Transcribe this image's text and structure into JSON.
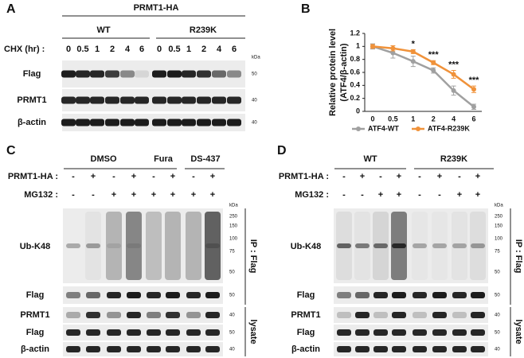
{
  "panel_a": {
    "label": "A",
    "construct": "PRMT1-HA",
    "groups": [
      "WT",
      "R239K"
    ],
    "row_label": "CHX (hr) :",
    "times": [
      "0",
      "0.5",
      "1",
      "2",
      "4",
      "6",
      "0",
      "0.5",
      "1",
      "2",
      "4",
      "6"
    ],
    "kda": "kDa",
    "blots": [
      {
        "name": "Flag",
        "marker": "50"
      },
      {
        "name": "PRMT1",
        "marker": "40"
      },
      {
        "name": "β-actin",
        "marker": "40"
      }
    ]
  },
  "chart_data": {
    "type": "line",
    "label": "B",
    "ylabel": [
      "Relative protein level",
      "(ATF4/β-actin)"
    ],
    "categories": [
      "0",
      "0.5",
      "1",
      "2",
      "4",
      "6"
    ],
    "ylim": [
      0,
      1.2
    ],
    "yticks": [
      0,
      0.2,
      0.4,
      0.6,
      0.8,
      1,
      1.2
    ],
    "series": [
      {
        "name": "ATF4-WT",
        "color": "#a0a0a0",
        "values": [
          1,
          0.9,
          0.77,
          0.63,
          0.32,
          0.07
        ],
        "errors": [
          0.04,
          0.08,
          0.08,
          0.04,
          0.07,
          0.04
        ]
      },
      {
        "name": "ATF4-R239K",
        "color": "#f0923a",
        "values": [
          1,
          0.97,
          0.92,
          0.75,
          0.57,
          0.34
        ],
        "errors": [
          0.03,
          0.04,
          0.03,
          0.03,
          0.06,
          0.05
        ]
      }
    ],
    "annotations": [
      {
        "category": "1",
        "text": "*"
      },
      {
        "category": "2",
        "text": "***"
      },
      {
        "category": "4",
        "text": "***"
      },
      {
        "category": "6",
        "text": "***"
      }
    ]
  },
  "panel_c": {
    "label": "C",
    "groups": [
      "DMSO",
      "Fura",
      "DS-437"
    ],
    "rows": [
      {
        "label": "PRMT1-HA :",
        "signs": [
          "-",
          "+",
          "-",
          "+",
          "-",
          "+",
          "-",
          "+"
        ]
      },
      {
        "label": "MG132 :",
        "signs": [
          "-",
          "-",
          "+",
          "+",
          "+",
          "+",
          "+",
          "+"
        ]
      }
    ],
    "kda": "kDa",
    "ip_markers": [
      "250",
      "150",
      "100",
      "75",
      "50"
    ],
    "ip_label": "IP : Flag",
    "lysate_label": "lysate",
    "blots": [
      {
        "name": "Ub-K48"
      },
      {
        "name": "Flag",
        "marker": "50"
      },
      {
        "name": "PRMT1",
        "marker": "40"
      },
      {
        "name": "Flag",
        "marker": "50"
      },
      {
        "name": "β-actin",
        "marker": "40"
      }
    ]
  },
  "panel_d": {
    "label": "D",
    "groups": [
      "WT",
      "R239K"
    ],
    "rows": [
      {
        "label": "PRMT1-HA :",
        "signs": [
          "-",
          "+",
          "-",
          "+",
          "-",
          "+",
          "-",
          "+"
        ]
      },
      {
        "label": "MG132 :",
        "signs": [
          "-",
          "-",
          "+",
          "+",
          "-",
          "-",
          "+",
          "+"
        ]
      }
    ],
    "kda": "kDa",
    "ip_markers": [
      "250",
      "150",
      "100",
      "75",
      "50"
    ],
    "ip_label": "IP : Flag",
    "lysate_label": "lysate",
    "blots": [
      {
        "name": "Ub-K48"
      },
      {
        "name": "Flag",
        "marker": "50"
      },
      {
        "name": "PRMT1",
        "marker": "40"
      },
      {
        "name": "Flag",
        "marker": "50"
      },
      {
        "name": "β-actin",
        "marker": "40"
      }
    ]
  }
}
